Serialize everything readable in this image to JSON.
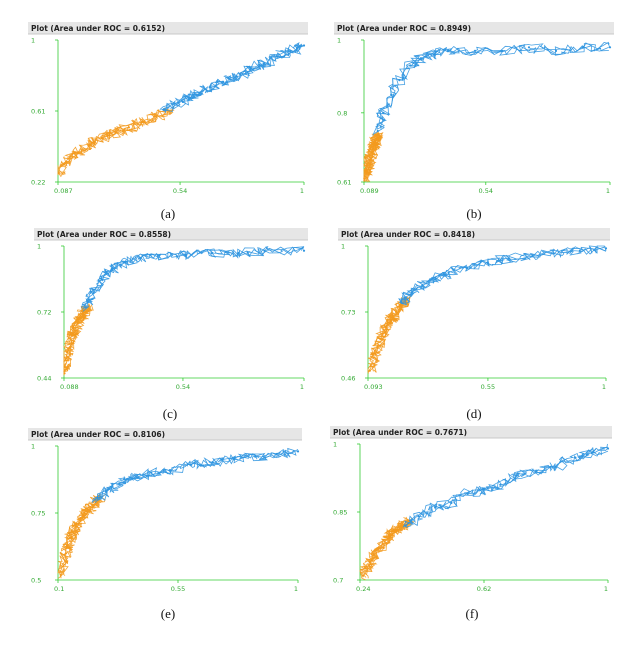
{
  "chart_data": [
    {
      "type": "line",
      "title": "Plot (Area under ROC = 0.6152)",
      "caption": "(a)",
      "x_ticks": [
        "0.087",
        "0.54",
        "1"
      ],
      "y_ticks": [
        "0.22",
        "0.61",
        "1"
      ],
      "xlim": [
        0.087,
        1
      ],
      "ylim": [
        0.22,
        1
      ],
      "series": [
        {
          "color": "#f39a1e",
          "x": [
            0.09,
            0.12,
            0.16,
            0.2,
            0.25,
            0.3,
            0.35,
            0.4,
            0.45,
            0.5
          ],
          "y": [
            0.27,
            0.33,
            0.38,
            0.42,
            0.46,
            0.49,
            0.52,
            0.55,
            0.58,
            0.61
          ]
        },
        {
          "color": "#2f95e0",
          "x": [
            0.48,
            0.55,
            0.6,
            0.65,
            0.7,
            0.75,
            0.8,
            0.85,
            0.9,
            0.95,
            1.0
          ],
          "y": [
            0.62,
            0.66,
            0.7,
            0.74,
            0.77,
            0.8,
            0.84,
            0.87,
            0.91,
            0.94,
            0.97
          ]
        }
      ]
    },
    {
      "type": "line",
      "title": "Plot (Area under ROC = 0.8949)",
      "caption": "(b)",
      "x_ticks": [
        "0.089",
        "0.54",
        "1"
      ],
      "y_ticks": [
        "0.61",
        "0.8",
        "1"
      ],
      "xlim": [
        0.089,
        1
      ],
      "ylim": [
        0.61,
        1
      ],
      "series": [
        {
          "color": "#f39a1e",
          "x": [
            0.09,
            0.1,
            0.11,
            0.12,
            0.13,
            0.14
          ],
          "y": [
            0.62,
            0.64,
            0.67,
            0.7,
            0.72,
            0.74
          ]
        },
        {
          "color": "#2f95e0",
          "x": [
            0.14,
            0.16,
            0.19,
            0.22,
            0.26,
            0.3,
            0.35,
            0.4,
            0.5,
            0.6,
            0.7,
            0.8,
            0.9,
            1.0
          ],
          "y": [
            0.75,
            0.8,
            0.85,
            0.89,
            0.93,
            0.95,
            0.96,
            0.97,
            0.97,
            0.97,
            0.98,
            0.97,
            0.98,
            0.98
          ]
        }
      ]
    },
    {
      "type": "line",
      "title": "Plot (Area under ROC = 0.8558)",
      "caption": "(c)",
      "x_ticks": [
        "0.088",
        "0.54",
        "1"
      ],
      "y_ticks": [
        "0.44",
        "0.72",
        "1"
      ],
      "xlim": [
        0.088,
        1
      ],
      "ylim": [
        0.44,
        1
      ],
      "series": [
        {
          "color": "#f39a1e",
          "x": [
            0.09,
            0.1,
            0.12,
            0.14,
            0.16,
            0.18
          ],
          "y": [
            0.46,
            0.55,
            0.62,
            0.67,
            0.71,
            0.74
          ]
        },
        {
          "color": "#2f95e0",
          "x": [
            0.17,
            0.2,
            0.23,
            0.27,
            0.32,
            0.38,
            0.45,
            0.55,
            0.65,
            0.75,
            0.85,
            1.0
          ],
          "y": [
            0.74,
            0.8,
            0.86,
            0.9,
            0.93,
            0.95,
            0.96,
            0.96,
            0.97,
            0.97,
            0.98,
            0.98
          ]
        }
      ]
    },
    {
      "type": "line",
      "title": "Plot (Area under ROC = 0.8418)",
      "caption": "(d)",
      "x_ticks": [
        "0.093",
        "0.55",
        "1"
      ],
      "y_ticks": [
        "0.46",
        "0.73",
        "1"
      ],
      "xlim": [
        0.093,
        1
      ],
      "ylim": [
        0.46,
        1
      ],
      "series": [
        {
          "color": "#f39a1e",
          "x": [
            0.1,
            0.12,
            0.14,
            0.16,
            0.18,
            0.2,
            0.22,
            0.24
          ],
          "y": [
            0.49,
            0.56,
            0.62,
            0.67,
            0.7,
            0.73,
            0.76,
            0.78
          ]
        },
        {
          "color": "#2f95e0",
          "x": [
            0.22,
            0.26,
            0.3,
            0.35,
            0.4,
            0.47,
            0.55,
            0.63,
            0.72,
            0.8,
            0.9,
            1.0
          ],
          "y": [
            0.77,
            0.81,
            0.84,
            0.87,
            0.89,
            0.91,
            0.93,
            0.95,
            0.96,
            0.97,
            0.98,
            0.99
          ]
        }
      ]
    },
    {
      "type": "line",
      "title": "Plot (Area under ROC = 0.8106)",
      "caption": "(e)",
      "x_ticks": [
        "0.1",
        "0.55",
        "1"
      ],
      "y_ticks": [
        "0.5",
        "0.75",
        "1"
      ],
      "xlim": [
        0.1,
        1
      ],
      "ylim": [
        0.5,
        1
      ],
      "series": [
        {
          "color": "#f39a1e",
          "x": [
            0.11,
            0.13,
            0.15,
            0.17,
            0.2,
            0.23,
            0.26
          ],
          "y": [
            0.52,
            0.6,
            0.66,
            0.71,
            0.75,
            0.78,
            0.81
          ]
        },
        {
          "color": "#2f95e0",
          "x": [
            0.24,
            0.28,
            0.33,
            0.38,
            0.45,
            0.52,
            0.6,
            0.68,
            0.76,
            0.84,
            0.92,
            1.0
          ],
          "y": [
            0.8,
            0.83,
            0.86,
            0.88,
            0.9,
            0.91,
            0.93,
            0.94,
            0.95,
            0.96,
            0.97,
            0.98
          ]
        }
      ]
    },
    {
      "type": "line",
      "title": "Plot (Area under ROC = 0.7671)",
      "caption": "(f)",
      "x_ticks": [
        "0.24",
        "0.62",
        "1"
      ],
      "y_ticks": [
        "0.7",
        "0.85",
        "1"
      ],
      "xlim": [
        0.24,
        1
      ],
      "ylim": [
        0.7,
        1
      ],
      "series": [
        {
          "color": "#f39a1e",
          "x": [
            0.25,
            0.27,
            0.29,
            0.31,
            0.33,
            0.35,
            0.37,
            0.39
          ],
          "y": [
            0.71,
            0.74,
            0.76,
            0.78,
            0.8,
            0.81,
            0.82,
            0.83
          ]
        },
        {
          "color": "#2f95e0",
          "x": [
            0.38,
            0.42,
            0.47,
            0.52,
            0.57,
            0.62,
            0.67,
            0.72,
            0.78,
            0.84,
            0.9,
            0.95,
            1.0
          ],
          "y": [
            0.82,
            0.84,
            0.86,
            0.87,
            0.89,
            0.9,
            0.91,
            0.93,
            0.94,
            0.95,
            0.97,
            0.98,
            0.99
          ]
        }
      ]
    }
  ]
}
